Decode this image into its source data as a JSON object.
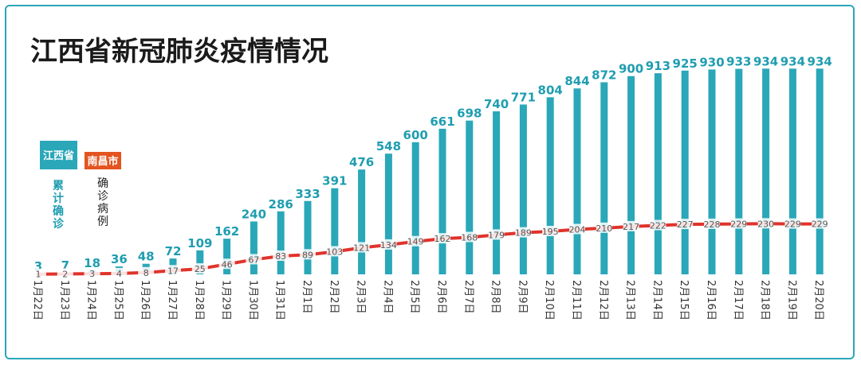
{
  "chart_data": {
    "type": "bar",
    "title": "江西省新冠肺炎疫情情况",
    "categories": [
      "1月22日",
      "1月23日",
      "1月24日",
      "1月25日",
      "1月26日",
      "1月27日",
      "1月28日",
      "1月29日",
      "1月30日",
      "1月31日",
      "2月1日",
      "2月2日",
      "2月3日",
      "2月4日",
      "2月5日",
      "2月6日",
      "2月7日",
      "2月8日",
      "2月9日",
      "2月10日",
      "2月11日",
      "2月12日",
      "2月13日",
      "2月14日",
      "2月15日",
      "2月16日",
      "2月17日",
      "2月18日",
      "2月19日",
      "2月20日"
    ],
    "series": [
      {
        "name": "江西省",
        "values": [
          3,
          7,
          18,
          36,
          48,
          72,
          109,
          162,
          240,
          286,
          333,
          391,
          476,
          548,
          600,
          661,
          698,
          740,
          771,
          804,
          844,
          872,
          900,
          913,
          925,
          930,
          933,
          934,
          934,
          934
        ],
        "type": "bar",
        "color": "#2aa7b8"
      },
      {
        "name": "南昌市",
        "values": [
          1,
          2,
          3,
          4,
          8,
          17,
          25,
          46,
          67,
          83,
          89,
          103,
          121,
          134,
          149,
          162,
          168,
          179,
          189,
          195,
          204,
          210,
          217,
          222,
          227,
          228,
          229,
          230,
          229,
          229
        ],
        "type": "line",
        "color": "#e0332c"
      }
    ],
    "ylim": [
      0,
      1000
    ],
    "grid": false,
    "legend": [
      {
        "label": "江西省",
        "sub": "累计确诊",
        "color": "#2aa7b8"
      },
      {
        "label": "南昌市",
        "sub": "确诊病例",
        "color": "#e35420"
      }
    ]
  }
}
